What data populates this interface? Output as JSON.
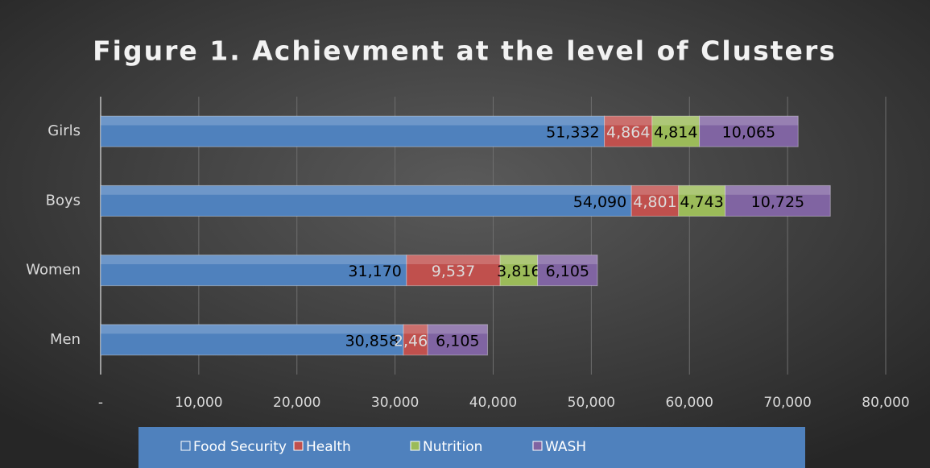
{
  "chart_data": {
    "type": "stacked_barh",
    "title": "Figure 1. Achievment at the level of Clusters",
    "categories": [
      "Girls",
      "Boys",
      "Women",
      "Men"
    ],
    "series": [
      {
        "name": "Food Security",
        "color": "#4f81bd",
        "values": [
          51332,
          54090,
          31170,
          30858
        ],
        "value_labels": [
          "51,332",
          "54,090",
          "31,170",
          "30,858"
        ]
      },
      {
        "name": "Health",
        "color": "#c0504d",
        "values": [
          4864,
          4801,
          9537,
          2464
        ],
        "value_labels": [
          "4,864",
          "4,801",
          "9,537",
          "2,464"
        ]
      },
      {
        "name": "Nutrition",
        "color": "#9bbb59",
        "values": [
          4814,
          4743,
          3816,
          null
        ],
        "value_labels": [
          "4,814",
          "4,743",
          "3,816",
          null
        ]
      },
      {
        "name": "WASH",
        "color": "#8064a2",
        "values": [
          10065,
          10725,
          6105,
          6105
        ],
        "value_labels": [
          "10,065",
          "10,725",
          "6,105",
          "6,105"
        ]
      }
    ],
    "xlim": [
      0,
      80000
    ],
    "xticks": [
      {
        "value": 0,
        "label": "-"
      },
      {
        "value": 10000,
        "label": "10,000"
      },
      {
        "value": 20000,
        "label": "20,000"
      },
      {
        "value": 30000,
        "label": "30,000"
      },
      {
        "value": 40000,
        "label": "40,000"
      },
      {
        "value": 50000,
        "label": "50,000"
      },
      {
        "value": 60000,
        "label": "60,000"
      },
      {
        "value": 70000,
        "label": "70,000"
      },
      {
        "value": 80000,
        "label": "80,000"
      }
    ],
    "grid": true,
    "legend": "bottom"
  }
}
